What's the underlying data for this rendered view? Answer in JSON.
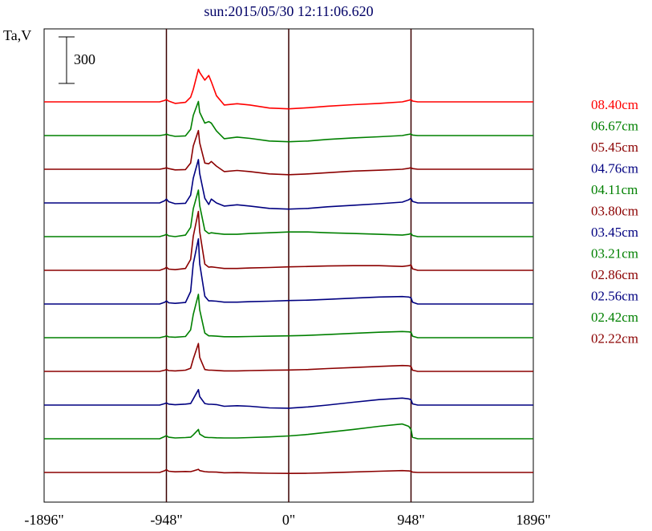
{
  "chart_data": {
    "type": "line",
    "title": "sun:2015/05/30 12:11:06.620",
    "ylabel": "Ta,V",
    "scale_bar_label": "300",
    "xlabel": "",
    "xlim": [
      -1896,
      1896
    ],
    "x_ticks": [
      {
        "value": -1896,
        "label": "-1896\""
      },
      {
        "value": -948,
        "label": "-948\""
      },
      {
        "value": 0,
        "label": "0\""
      },
      {
        "value": 948,
        "label": "948\""
      },
      {
        "value": 1896,
        "label": "1896\""
      }
    ],
    "vertical_gridlines": [
      -948,
      0,
      948
    ],
    "grid": false,
    "legend_position": "right",
    "x": [
      -1896,
      -1500,
      -1200,
      -1000,
      -960,
      -948,
      -930,
      -880,
      -800,
      -760,
      -740,
      -700,
      -690,
      -650,
      -620,
      -600,
      -560,
      -500,
      -400,
      -300,
      -150,
      0,
      150,
      300,
      500,
      700,
      880,
      930,
      948,
      960,
      1000,
      1200,
      1500,
      1896
    ],
    "series": [
      {
        "name": "08.40cm",
        "color": "#ff0000",
        "values": [
          0,
          0,
          0,
          0,
          10,
          15,
          5,
          -10,
          -3,
          30,
          80,
          210,
          190,
          140,
          170,
          130,
          40,
          -20,
          -12,
          -20,
          -40,
          -45,
          -38,
          -28,
          -18,
          -10,
          0,
          10,
          15,
          5,
          0,
          0,
          0,
          0
        ]
      },
      {
        "name": "06.67cm",
        "color": "#008000",
        "values": [
          0,
          0,
          0,
          0,
          5,
          10,
          3,
          -5,
          -2,
          40,
          130,
          220,
          150,
          80,
          90,
          80,
          30,
          -20,
          -10,
          -18,
          -35,
          -40,
          -35,
          -25,
          -15,
          -8,
          0,
          8,
          10,
          3,
          0,
          0,
          0,
          0
        ]
      },
      {
        "name": "05.45cm",
        "color": "#8b0000",
        "values": [
          0,
          0,
          0,
          0,
          6,
          10,
          4,
          -4,
          -2,
          40,
          150,
          250,
          170,
          40,
          35,
          50,
          20,
          -15,
          -8,
          -15,
          -30,
          -35,
          -30,
          -22,
          -12,
          -6,
          0,
          6,
          10,
          4,
          0,
          0,
          0,
          0
        ]
      },
      {
        "name": "04.76cm",
        "color": "#000080",
        "values": [
          0,
          0,
          0,
          0,
          15,
          25,
          8,
          -5,
          -2,
          50,
          160,
          280,
          190,
          30,
          -10,
          25,
          0,
          -20,
          -12,
          -20,
          -35,
          -40,
          -35,
          -25,
          -15,
          -5,
          5,
          20,
          30,
          10,
          0,
          0,
          0,
          0
        ]
      },
      {
        "name": "04.11cm",
        "color": "#008000",
        "values": [
          0,
          0,
          0,
          0,
          10,
          15,
          5,
          0,
          10,
          60,
          180,
          300,
          200,
          40,
          20,
          25,
          20,
          15,
          15,
          20,
          25,
          30,
          30,
          25,
          20,
          15,
          10,
          15,
          20,
          8,
          0,
          0,
          0,
          0
        ]
      },
      {
        "name": "03.80cm",
        "color": "#8b0000",
        "values": [
          0,
          0,
          0,
          0,
          12,
          20,
          8,
          4,
          12,
          70,
          220,
          380,
          250,
          40,
          20,
          22,
          18,
          12,
          12,
          15,
          18,
          22,
          25,
          28,
          30,
          30,
          25,
          30,
          35,
          10,
          0,
          0,
          0,
          0
        ]
      },
      {
        "name": "03.45cm",
        "color": "#000080",
        "values": [
          0,
          0,
          0,
          0,
          12,
          20,
          8,
          4,
          10,
          80,
          260,
          420,
          260,
          50,
          20,
          20,
          18,
          12,
          12,
          15,
          18,
          22,
          25,
          30,
          38,
          45,
          48,
          45,
          40,
          12,
          0,
          0,
          0,
          0
        ]
      },
      {
        "name": "03.21cm",
        "color": "#008000",
        "values": [
          0,
          0,
          0,
          0,
          8,
          12,
          5,
          3,
          8,
          50,
          150,
          280,
          180,
          30,
          12,
          12,
          10,
          6,
          6,
          8,
          10,
          12,
          15,
          20,
          28,
          35,
          40,
          38,
          35,
          10,
          0,
          0,
          0,
          0
        ]
      },
      {
        "name": "02.86cm",
        "color": "#8b0000",
        "values": [
          0,
          0,
          0,
          0,
          8,
          12,
          5,
          3,
          8,
          20,
          80,
          180,
          90,
          12,
          8,
          8,
          6,
          3,
          3,
          5,
          7,
          9,
          12,
          18,
          25,
          32,
          38,
          36,
          32,
          8,
          0,
          0,
          0,
          0
        ]
      },
      {
        "name": "02.56cm",
        "color": "#000080",
        "values": [
          0,
          0,
          0,
          0,
          10,
          14,
          6,
          2,
          6,
          10,
          40,
          100,
          55,
          10,
          5,
          5,
          3,
          -8,
          -4,
          -8,
          -18,
          -20,
          -12,
          0,
          18,
          35,
          45,
          40,
          35,
          8,
          0,
          0,
          0,
          0
        ]
      },
      {
        "name": "02.42cm",
        "color": "#008000",
        "values": [
          0,
          0,
          0,
          0,
          15,
          20,
          10,
          5,
          8,
          10,
          25,
          60,
          30,
          10,
          8,
          8,
          6,
          5,
          5,
          8,
          12,
          18,
          28,
          42,
          60,
          80,
          95,
          80,
          60,
          10,
          0,
          0,
          0,
          0
        ]
      },
      {
        "name": "02.22cm",
        "color": "#8b0000",
        "values": [
          0,
          0,
          0,
          0,
          12,
          18,
          8,
          4,
          6,
          5,
          10,
          20,
          12,
          5,
          3,
          3,
          2,
          -2,
          -1,
          -3,
          -5,
          -6,
          -5,
          -2,
          3,
          8,
          12,
          10,
          8,
          2,
          0,
          0,
          0,
          0
        ]
      }
    ]
  }
}
